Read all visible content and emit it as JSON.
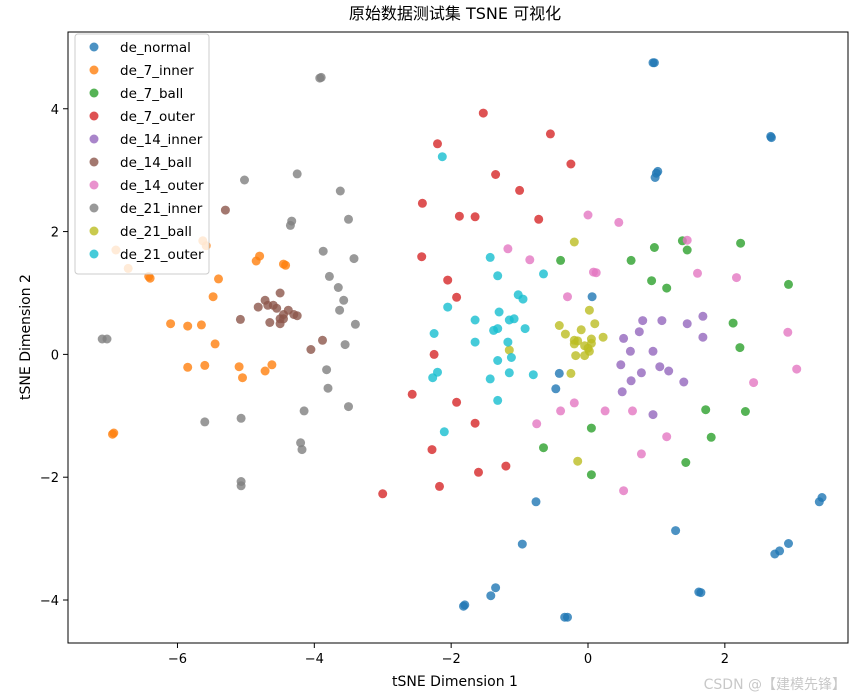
{
  "watermark": "CSDN @【建模先锋】",
  "chart_data": {
    "type": "scatter",
    "title": "原始数据测试集 TSNE 可视化",
    "xlabel": "tSNE Dimension 1",
    "ylabel": "tSNE Dimension 2",
    "xlim": [
      -7.6,
      3.8
    ],
    "ylim": [
      -4.7,
      5.25
    ],
    "xticks": [
      -6,
      -4,
      -2,
      0,
      2
    ],
    "yticks": [
      -4,
      -2,
      0,
      2,
      4
    ],
    "xtick_labels": [
      "−6",
      "−4",
      "−2",
      "0",
      "2"
    ],
    "ytick_labels": [
      "−4",
      "−2",
      "0",
      "2",
      "4"
    ],
    "legend_position": "upper-left",
    "grid": false,
    "series": [
      {
        "name": "de_normal",
        "color": "#1f77b4",
        "points": [
          [
            0.97,
            4.75
          ],
          [
            0.95,
            4.75
          ],
          [
            1.02,
            2.98
          ],
          [
            1.0,
            2.95
          ],
          [
            0.98,
            2.88
          ],
          [
            2.67,
            3.55
          ],
          [
            2.68,
            3.53
          ],
          [
            0.06,
            0.94
          ],
          [
            -0.47,
            -0.56
          ],
          [
            -0.42,
            -0.31
          ],
          [
            -0.76,
            -2.4
          ],
          [
            -0.96,
            -3.09
          ],
          [
            1.28,
            -2.87
          ],
          [
            2.93,
            -3.08
          ],
          [
            2.8,
            -3.2
          ],
          [
            2.73,
            -3.25
          ],
          [
            3.42,
            -2.33
          ],
          [
            3.38,
            -2.4
          ],
          [
            1.62,
            -3.87
          ],
          [
            1.65,
            -3.88
          ],
          [
            -1.35,
            -3.8
          ],
          [
            -1.42,
            -3.93
          ],
          [
            -1.82,
            -4.1
          ],
          [
            -1.8,
            -4.08
          ],
          [
            -0.34,
            -4.28
          ],
          [
            -0.3,
            -4.28
          ]
        ]
      },
      {
        "name": "de_7_inner",
        "color": "#ff7f0e",
        "points": [
          [
            -6.95,
            -1.3
          ],
          [
            -6.93,
            -1.28
          ],
          [
            -6.9,
            1.7
          ],
          [
            -6.72,
            1.4
          ],
          [
            -6.4,
            1.24
          ],
          [
            -6.42,
            1.27
          ],
          [
            -5.85,
            0.46
          ],
          [
            -5.85,
            -0.21
          ],
          [
            -5.6,
            -0.18
          ],
          [
            -5.65,
            0.48
          ],
          [
            -5.63,
            1.85
          ],
          [
            -5.58,
            1.77
          ],
          [
            -5.45,
            0.17
          ],
          [
            -5.4,
            1.23
          ],
          [
            -5.48,
            0.94
          ],
          [
            -5.1,
            -0.2
          ],
          [
            -5.05,
            -0.38
          ],
          [
            -4.85,
            1.52
          ],
          [
            -4.8,
            1.6
          ],
          [
            -4.72,
            -0.27
          ],
          [
            -4.62,
            -0.17
          ],
          [
            -4.45,
            1.47
          ],
          [
            -4.42,
            1.45
          ],
          [
            -6.1,
            0.5
          ]
        ]
      },
      {
        "name": "de_7_ball",
        "color": "#2ca02c",
        "points": [
          [
            -0.4,
            1.53
          ],
          [
            0.63,
            1.53
          ],
          [
            0.97,
            1.74
          ],
          [
            1.38,
            1.85
          ],
          [
            1.45,
            1.7
          ],
          [
            0.93,
            1.2
          ],
          [
            1.15,
            1.08
          ],
          [
            2.23,
            1.81
          ],
          [
            2.93,
            1.14
          ],
          [
            2.12,
            0.51
          ],
          [
            2.22,
            0.11
          ],
          [
            1.72,
            -0.9
          ],
          [
            2.3,
            -0.93
          ],
          [
            1.8,
            -1.35
          ],
          [
            0.05,
            -1.2
          ],
          [
            -0.65,
            -1.52
          ],
          [
            0.05,
            -1.96
          ],
          [
            1.43,
            -1.76
          ]
        ]
      },
      {
        "name": "de_7_outer",
        "color": "#d62728",
        "points": [
          [
            -1.53,
            3.93
          ],
          [
            -2.2,
            3.43
          ],
          [
            -1.35,
            2.93
          ],
          [
            -0.55,
            3.59
          ],
          [
            -0.25,
            3.1
          ],
          [
            -1.0,
            2.67
          ],
          [
            -2.42,
            2.46
          ],
          [
            -1.65,
            2.24
          ],
          [
            -0.72,
            2.2
          ],
          [
            -1.88,
            2.25
          ],
          [
            -2.43,
            1.59
          ],
          [
            -2.05,
            1.21
          ],
          [
            -1.92,
            0.93
          ],
          [
            -2.25,
            0.0
          ],
          [
            -2.57,
            -0.65
          ],
          [
            -1.92,
            -0.78
          ],
          [
            -1.65,
            -1.12
          ],
          [
            -2.28,
            -1.55
          ],
          [
            -2.17,
            -2.15
          ],
          [
            -1.6,
            -1.92
          ],
          [
            -1.2,
            -1.82
          ],
          [
            -3.0,
            -2.27
          ]
        ]
      },
      {
        "name": "de_14_inner",
        "color": "#9467bd",
        "points": [
          [
            0.75,
            0.37
          ],
          [
            1.08,
            0.55
          ],
          [
            0.8,
            0.55
          ],
          [
            1.68,
            0.62
          ],
          [
            1.45,
            0.5
          ],
          [
            1.68,
            0.28
          ],
          [
            0.52,
            0.26
          ],
          [
            0.62,
            0.05
          ],
          [
            0.95,
            0.05
          ],
          [
            1.05,
            -0.2
          ],
          [
            0.48,
            -0.17
          ],
          [
            0.63,
            -0.43
          ],
          [
            1.18,
            -0.27
          ],
          [
            1.4,
            -0.45
          ],
          [
            0.78,
            -0.3
          ],
          [
            0.5,
            -0.61
          ],
          [
            0.95,
            -0.98
          ]
        ]
      },
      {
        "name": "de_14_ball",
        "color": "#8c564b",
        "points": [
          [
            -4.6,
            0.8
          ],
          [
            -4.55,
            0.75
          ],
          [
            -4.5,
            0.58
          ],
          [
            -4.45,
            0.65
          ],
          [
            -4.38,
            0.72
          ],
          [
            -4.3,
            0.65
          ],
          [
            -4.25,
            0.63
          ],
          [
            -4.5,
            1.0
          ],
          [
            -4.72,
            0.88
          ],
          [
            -4.68,
            0.8
          ],
          [
            -4.65,
            0.52
          ],
          [
            -4.5,
            0.5
          ],
          [
            -4.82,
            0.77
          ],
          [
            -5.08,
            0.57
          ],
          [
            -5.3,
            2.35
          ],
          [
            -4.05,
            0.08
          ],
          [
            -3.88,
            0.23
          ],
          [
            -4.45,
            0.58
          ]
        ]
      },
      {
        "name": "de_14_outer",
        "color": "#e377c2",
        "points": [
          [
            0.0,
            2.27
          ],
          [
            0.45,
            2.15
          ],
          [
            1.45,
            1.86
          ],
          [
            -0.85,
            1.54
          ],
          [
            -1.17,
            1.72
          ],
          [
            0.08,
            1.34
          ],
          [
            0.12,
            1.33
          ],
          [
            1.6,
            1.32
          ],
          [
            2.17,
            1.25
          ],
          [
            -0.3,
            0.94
          ],
          [
            2.92,
            0.36
          ],
          [
            3.05,
            -0.24
          ],
          [
            2.42,
            -0.46
          ],
          [
            -0.4,
            -0.92
          ],
          [
            -0.2,
            -0.79
          ],
          [
            0.25,
            -0.92
          ],
          [
            0.65,
            -0.92
          ],
          [
            -0.75,
            -1.13
          ],
          [
            1.15,
            -1.34
          ],
          [
            0.78,
            -1.62
          ],
          [
            0.52,
            -2.22
          ]
        ]
      },
      {
        "name": "de_21_inner",
        "color": "#7f7f7f",
        "points": [
          [
            -3.92,
            4.5
          ],
          [
            -3.9,
            4.51
          ],
          [
            -4.25,
            2.94
          ],
          [
            -5.02,
            2.84
          ],
          [
            -3.62,
            2.66
          ],
          [
            -3.5,
            2.2
          ],
          [
            -4.33,
            2.17
          ],
          [
            -4.35,
            2.1
          ],
          [
            -3.87,
            1.68
          ],
          [
            -3.42,
            1.56
          ],
          [
            -3.78,
            1.27
          ],
          [
            -3.65,
            1.09
          ],
          [
            -3.57,
            0.88
          ],
          [
            -3.63,
            0.72
          ],
          [
            -3.4,
            0.49
          ],
          [
            -3.55,
            0.16
          ],
          [
            -3.82,
            -0.25
          ],
          [
            -3.8,
            -0.55
          ],
          [
            -3.5,
            -0.85
          ],
          [
            -4.15,
            -0.92
          ],
          [
            -4.2,
            -1.44
          ],
          [
            -4.18,
            -1.55
          ],
          [
            -5.6,
            -1.1
          ],
          [
            -5.07,
            -1.04
          ],
          [
            -5.07,
            -2.07
          ],
          [
            -5.07,
            -2.14
          ],
          [
            -7.1,
            0.25
          ],
          [
            -7.03,
            0.25
          ]
        ]
      },
      {
        "name": "de_21_ball",
        "color": "#bcbd22",
        "points": [
          [
            -0.2,
            1.83
          ],
          [
            0.02,
            0.72
          ],
          [
            -0.42,
            0.47
          ],
          [
            0.1,
            0.5
          ],
          [
            -0.1,
            0.4
          ],
          [
            0.05,
            0.25
          ],
          [
            0.22,
            0.28
          ],
          [
            -0.05,
            0.14
          ],
          [
            -0.15,
            0.22
          ],
          [
            -0.33,
            0.33
          ],
          [
            -0.2,
            0.17
          ],
          [
            -0.18,
            -0.02
          ],
          [
            0.05,
            0.18
          ],
          [
            0.02,
            0.05
          ],
          [
            -0.05,
            -0.02
          ],
          [
            -1.15,
            0.07
          ],
          [
            -0.25,
            -0.31
          ],
          [
            -0.15,
            -1.74
          ],
          [
            -0.2,
            0.23
          ],
          [
            0.0,
            0.1
          ]
        ]
      },
      {
        "name": "de_21_outer",
        "color": "#17becf",
        "points": [
          [
            -2.13,
            3.22
          ],
          [
            -1.43,
            1.58
          ],
          [
            -1.32,
            1.28
          ],
          [
            -0.65,
            1.31
          ],
          [
            -1.02,
            0.97
          ],
          [
            -0.95,
            0.9
          ],
          [
            -2.05,
            0.77
          ],
          [
            -1.3,
            0.69
          ],
          [
            -1.08,
            0.58
          ],
          [
            -1.15,
            0.56
          ],
          [
            -1.65,
            0.56
          ],
          [
            -1.38,
            0.39
          ],
          [
            -1.32,
            0.42
          ],
          [
            -0.92,
            0.42
          ],
          [
            -2.25,
            0.34
          ],
          [
            -1.65,
            0.2
          ],
          [
            -1.17,
            0.2
          ],
          [
            -1.12,
            -0.05
          ],
          [
            -1.32,
            -0.1
          ],
          [
            -1.15,
            -0.3
          ],
          [
            -0.8,
            -0.33
          ],
          [
            -2.2,
            -0.29
          ],
          [
            -2.27,
            -0.38
          ],
          [
            -1.43,
            -0.4
          ],
          [
            -1.32,
            -0.75
          ],
          [
            -2.1,
            -1.26
          ]
        ]
      }
    ]
  }
}
